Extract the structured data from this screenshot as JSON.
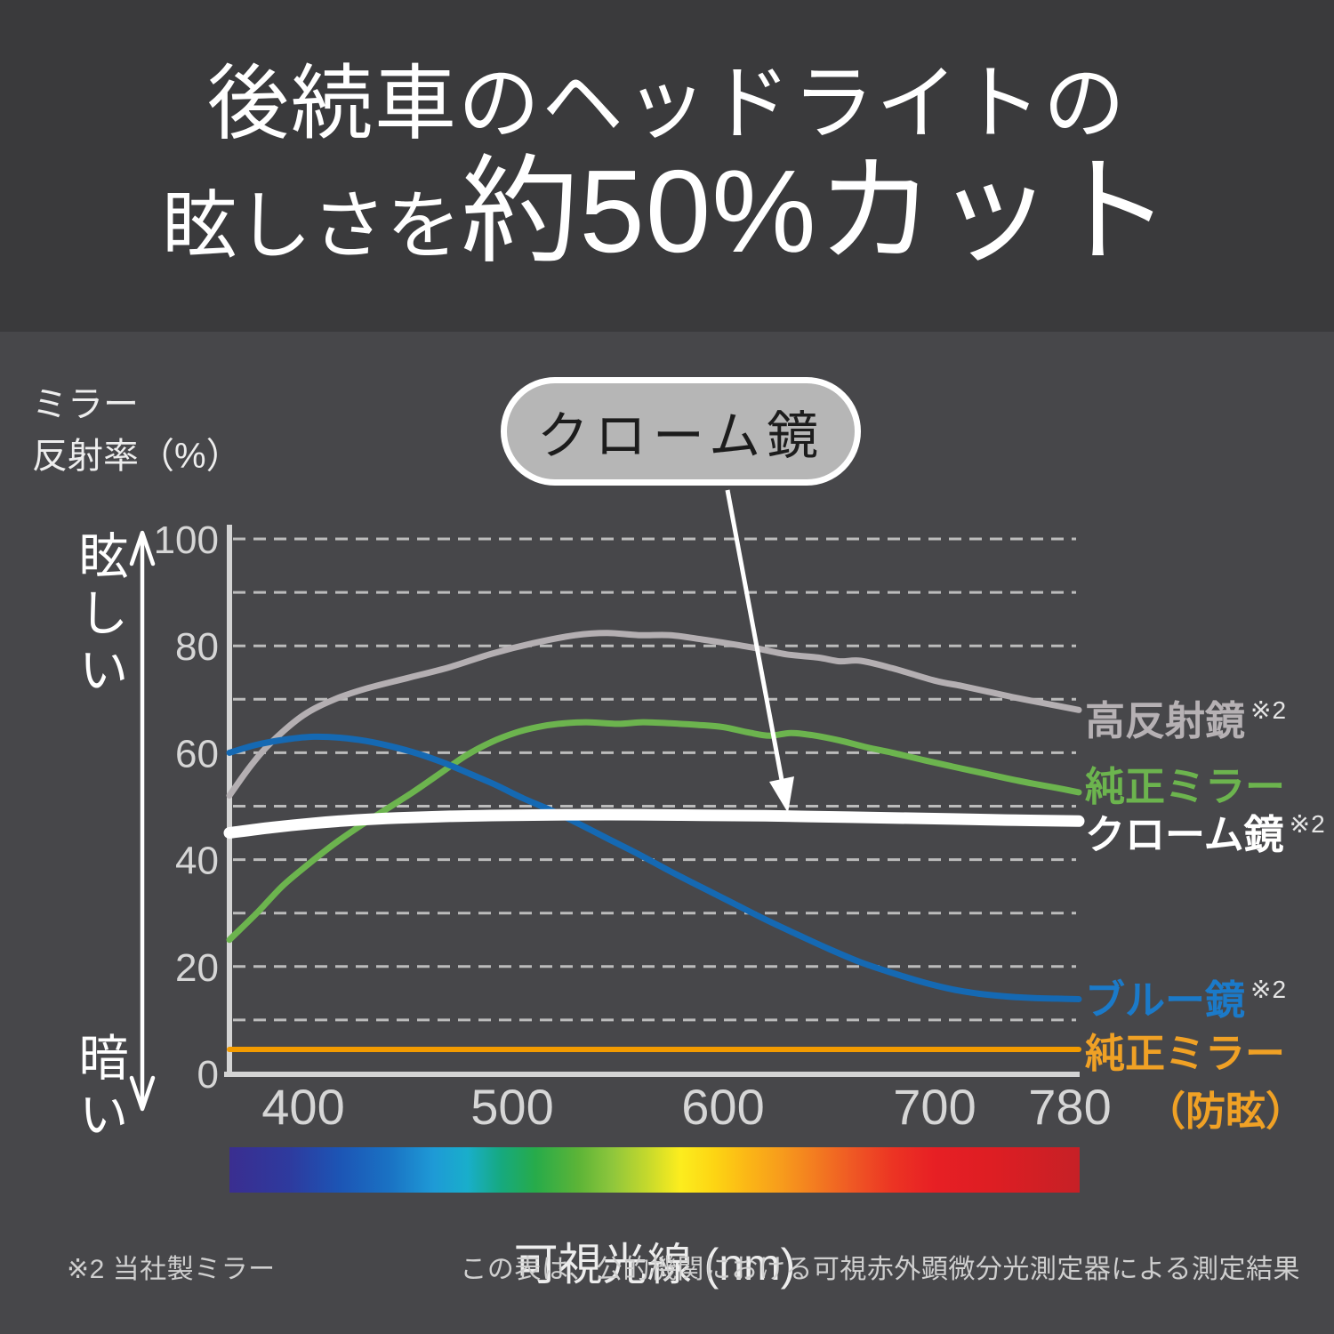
{
  "banner": {
    "title_line1": "後続車のヘッドライトの",
    "title_line2_small": "眩しさを",
    "title_line2_large": "約50%カット"
  },
  "axis_title": {
    "line1": "ミラー",
    "line2": "反射率（%）"
  },
  "brightness_scale": {
    "high": "眩しい",
    "low": "暗い"
  },
  "callout": {
    "label": "クローム鏡"
  },
  "legend": {
    "items": [
      {
        "key": "high-reflection-mirror",
        "label": "高反射鏡",
        "sup": "※2",
        "color": "#b6b1b4"
      },
      {
        "key": "genuine-mirror",
        "label": "純正ミラー",
        "sup": "",
        "color": "#6cb44e"
      },
      {
        "key": "chrome-mirror",
        "label": "クローム鏡",
        "sup": "※2",
        "color": "#ffffff"
      },
      {
        "key": "blue-mirror",
        "label": "ブルー鏡",
        "sup": "※2",
        "color": "#1b7ac9"
      },
      {
        "key": "genuine-mirror-antiglare",
        "label": "純正ミラー",
        "label2": "（防眩）",
        "sup": "",
        "color": "#f0a125"
      }
    ]
  },
  "footnotes": {
    "left": "※2 当社製ミラー",
    "right": "この表は、公的機関における可視赤外顕微分光測定器による測定結果"
  },
  "chart_data": {
    "type": "line",
    "title": "ミラー反射率（%）",
    "xlabel": "可視光線 (nm)",
    "ylabel": "ミラー反射率（%）",
    "x_axis": {
      "min": 365,
      "max": 780,
      "ticks": [
        400,
        500,
        600,
        700,
        780
      ]
    },
    "y_axis": {
      "min": 0,
      "max": 100,
      "ticks": [
        0,
        20,
        40,
        60,
        80,
        100
      ],
      "gridline_step": 10,
      "grid": "dashed"
    },
    "legend_position": "right",
    "series": [
      {
        "name": "高反射鏡",
        "key": "high-reflection-mirror",
        "color": "#b4afb2",
        "width": 7,
        "points": [
          [
            365,
            52
          ],
          [
            375,
            57.5
          ],
          [
            385,
            62
          ],
          [
            400,
            67
          ],
          [
            415,
            70
          ],
          [
            430,
            72
          ],
          [
            450,
            74
          ],
          [
            470,
            76
          ],
          [
            490,
            78.5
          ],
          [
            510,
            80.5
          ],
          [
            530,
            82
          ],
          [
            545,
            82.4
          ],
          [
            560,
            82
          ],
          [
            575,
            82
          ],
          [
            590,
            81.2
          ],
          [
            600,
            80.6
          ],
          [
            615,
            79.6
          ],
          [
            630,
            78.4
          ],
          [
            645,
            77.8
          ],
          [
            655,
            77.1
          ],
          [
            665,
            77.2
          ],
          [
            680,
            75.8
          ],
          [
            700,
            73.5
          ],
          [
            715,
            72.5
          ],
          [
            730,
            71.4
          ],
          [
            745,
            70.3
          ],
          [
            760,
            69.3
          ],
          [
            780,
            68
          ]
        ]
      },
      {
        "name": "純正ミラー",
        "key": "genuine-mirror",
        "color": "#6cb44e",
        "width": 7,
        "points": [
          [
            365,
            25
          ],
          [
            378,
            30
          ],
          [
            390,
            35
          ],
          [
            402,
            39
          ],
          [
            415,
            43
          ],
          [
            428,
            46.5
          ],
          [
            440,
            49.5
          ],
          [
            452,
            52.5
          ],
          [
            465,
            56
          ],
          [
            478,
            59.5
          ],
          [
            490,
            62
          ],
          [
            502,
            63.8
          ],
          [
            512,
            64.8
          ],
          [
            522,
            65.4
          ],
          [
            535,
            65.7
          ],
          [
            550,
            65.4
          ],
          [
            562,
            65.7
          ],
          [
            575,
            65.5
          ],
          [
            588,
            65.2
          ],
          [
            600,
            64.8
          ],
          [
            612,
            63.8
          ],
          [
            622,
            63.2
          ],
          [
            632,
            63.7
          ],
          [
            642,
            63.3
          ],
          [
            655,
            62.3
          ],
          [
            668,
            61
          ],
          [
            680,
            60
          ],
          [
            695,
            58.6
          ],
          [
            710,
            57.4
          ],
          [
            725,
            56.3
          ],
          [
            740,
            55.2
          ],
          [
            755,
            54.2
          ],
          [
            768,
            53.4
          ],
          [
            780,
            52.6
          ]
        ]
      },
      {
        "name": "ブルー鏡",
        "key": "blue-mirror",
        "color": "#1569b3",
        "width": 7,
        "points": [
          [
            365,
            60
          ],
          [
            378,
            61.5
          ],
          [
            392,
            62.5
          ],
          [
            405,
            63
          ],
          [
            418,
            62.8
          ],
          [
            430,
            62.2
          ],
          [
            442,
            61.2
          ],
          [
            455,
            59.8
          ],
          [
            468,
            58
          ],
          [
            480,
            56
          ],
          [
            492,
            54
          ],
          [
            505,
            51.5
          ],
          [
            518,
            49.3
          ],
          [
            530,
            47
          ],
          [
            545,
            44
          ],
          [
            560,
            41
          ],
          [
            575,
            37.8
          ],
          [
            590,
            34.8
          ],
          [
            605,
            31.8
          ],
          [
            620,
            28.8
          ],
          [
            635,
            26
          ],
          [
            650,
            23.3
          ],
          [
            665,
            20.8
          ],
          [
            680,
            18.8
          ],
          [
            695,
            17
          ],
          [
            710,
            15.7
          ],
          [
            725,
            14.9
          ],
          [
            740,
            14.4
          ],
          [
            755,
            14.1
          ],
          [
            768,
            14
          ],
          [
            780,
            13.9
          ]
        ]
      },
      {
        "name": "純正ミラー（防眩）",
        "key": "genuine-mirror-antiglare",
        "color": "#f39b00",
        "width": 6,
        "points": [
          [
            365,
            4.5
          ],
          [
            470,
            4.5
          ],
          [
            575,
            4.5
          ],
          [
            680,
            4.5
          ],
          [
            780,
            4.5
          ]
        ]
      },
      {
        "name": "クローム鏡",
        "key": "chrome-mirror",
        "color": "#ffffff",
        "width": 13,
        "points": [
          [
            365,
            45
          ],
          [
            385,
            46
          ],
          [
            405,
            46.8
          ],
          [
            425,
            47.4
          ],
          [
            445,
            47.8
          ],
          [
            470,
            48.1
          ],
          [
            500,
            48.3
          ],
          [
            530,
            48.4
          ],
          [
            560,
            48.4
          ],
          [
            590,
            48.3
          ],
          [
            620,
            48.2
          ],
          [
            650,
            48
          ],
          [
            680,
            47.8
          ],
          [
            710,
            47.6
          ],
          [
            740,
            47.4
          ],
          [
            780,
            47.2
          ]
        ]
      }
    ],
    "spectrum_bar": {
      "label": "可視光線 (nm)",
      "stops": [
        {
          "offset": 0,
          "color": "#3a2e90"
        },
        {
          "offset": 7,
          "color": "#2e3a9e"
        },
        {
          "offset": 13,
          "color": "#1c55b5"
        },
        {
          "offset": 19,
          "color": "#1a73c4"
        },
        {
          "offset": 24,
          "color": "#1e9ad6"
        },
        {
          "offset": 28,
          "color": "#19aecb"
        },
        {
          "offset": 32,
          "color": "#16a97e"
        },
        {
          "offset": 36,
          "color": "#27ab4a"
        },
        {
          "offset": 41,
          "color": "#5cb437"
        },
        {
          "offset": 45,
          "color": "#8ec63c"
        },
        {
          "offset": 49,
          "color": "#c3d82d"
        },
        {
          "offset": 53,
          "color": "#fced1e"
        },
        {
          "offset": 57,
          "color": "#fdd513"
        },
        {
          "offset": 61,
          "color": "#fbb616"
        },
        {
          "offset": 65,
          "color": "#f79b1c"
        },
        {
          "offset": 69,
          "color": "#f37b20"
        },
        {
          "offset": 73,
          "color": "#ef5a24"
        },
        {
          "offset": 78,
          "color": "#ec3423"
        },
        {
          "offset": 83,
          "color": "#e71f24"
        },
        {
          "offset": 90,
          "color": "#dd1e23"
        },
        {
          "offset": 100,
          "color": "#c62026"
        }
      ]
    }
  }
}
